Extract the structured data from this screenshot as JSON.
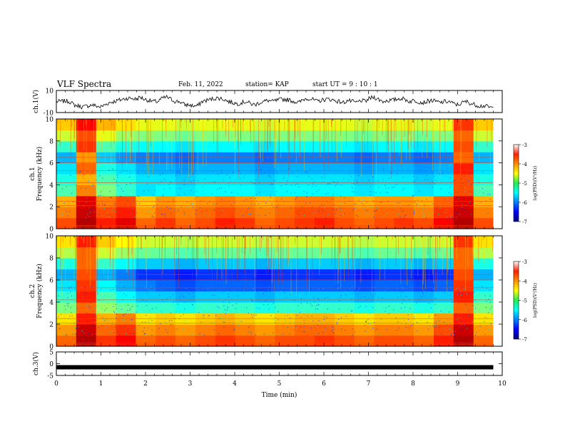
{
  "header": {
    "title": "VLF Spectra",
    "date": "Feb. 11, 2022",
    "station": "station= KAP",
    "start_time": "start  UT =   9 : 10 : 1"
  },
  "chart_data": [
    {
      "type": "line",
      "ylabel": "ch.1(V)",
      "ylim": [
        -10,
        10
      ],
      "yticklabels": [
        "10",
        "-10"
      ],
      "xlim": [
        0,
        10
      ],
      "series": [
        {
          "values": [
            0,
            0,
            0.5,
            0,
            -3,
            -4,
            -5,
            -4,
            -3,
            -4,
            -5,
            -3,
            -1,
            0,
            1,
            2,
            3,
            3,
            2,
            4,
            2,
            1,
            0,
            0,
            3,
            4,
            2,
            0,
            0,
            -3,
            -3,
            -4,
            -4,
            0,
            1,
            2,
            3,
            3,
            2,
            0,
            -1,
            -2,
            -1,
            0,
            -2,
            -3,
            -1,
            0,
            1,
            0,
            1,
            2,
            2,
            1,
            0,
            -1,
            2,
            3,
            2,
            0,
            1,
            2,
            2,
            1,
            0,
            -1,
            1,
            0,
            -1,
            1,
            0,
            3,
            4,
            2,
            0,
            1,
            1,
            2,
            3,
            2,
            0,
            1,
            0,
            -1,
            0,
            1,
            0,
            -1,
            0,
            0,
            -2,
            -3,
            -1,
            0,
            -2,
            -3,
            -4,
            -4,
            -5,
            -6
          ]
        }
      ]
    },
    {
      "type": "heatmap",
      "ylabel": "ch.1\nFrequency  (kHz)",
      "ylim": [
        0,
        10
      ],
      "yticklabels": [
        "0",
        "2",
        "4",
        "6",
        "8",
        "10"
      ],
      "xlim": [
        0,
        10
      ],
      "colorbar": {
        "range": [
          -7,
          -3
        ],
        "ticklabels": [
          "-3",
          "-4",
          "-5",
          "-6",
          "-7"
        ],
        "label": "log(PSD)(V²/Hz)"
      },
      "rows": [
        [
          -3.8,
          -3.2,
          -3.6,
          -3.4,
          -3.9,
          -3.7,
          -3.9,
          -3.8,
          -3.6,
          -3.7,
          -3.9,
          -3.8,
          -3.7,
          -3.6,
          -3.8,
          -3.9,
          -3.8,
          -3.7,
          -3.8,
          -3.5,
          -3.2,
          -3.8
        ],
        [
          -4.0,
          -3.3,
          -3.8,
          -3.6,
          -4.1,
          -3.9,
          -4.0,
          -3.9,
          -3.8,
          -3.9,
          -4.0,
          -3.9,
          -3.8,
          -3.8,
          -3.9,
          -4.0,
          -3.9,
          -3.9,
          -4.0,
          -3.7,
          -3.3,
          -4.0
        ],
        [
          -4.2,
          -3.4,
          -4.0,
          -3.8,
          -4.3,
          -4.1,
          -4.2,
          -4.1,
          -4.0,
          -4.1,
          -4.2,
          -4.1,
          -4.0,
          -4.0,
          -4.1,
          -4.2,
          -4.1,
          -4.1,
          -4.2,
          -3.9,
          -3.4,
          -4.2
        ],
        [
          -5.2,
          -4.0,
          -5.0,
          -5.3,
          -5.6,
          -5.5,
          -5.6,
          -5.5,
          -5.5,
          -5.5,
          -5.6,
          -5.5,
          -5.5,
          -5.5,
          -5.5,
          -5.6,
          -5.5,
          -5.5,
          -5.6,
          -5.5,
          -3.8,
          -5.2
        ],
        [
          -5.4,
          -4.2,
          -5.2,
          -5.4,
          -5.6,
          -5.6,
          -5.7,
          -5.6,
          -5.6,
          -5.6,
          -5.7,
          -5.6,
          -5.6,
          -5.6,
          -5.6,
          -5.7,
          -5.6,
          -5.6,
          -5.7,
          -5.6,
          -3.8,
          -5.4
        ],
        [
          -5.6,
          -3.9,
          -5.4,
          -5.6,
          -5.8,
          -5.8,
          -5.9,
          -5.8,
          -5.8,
          -5.8,
          -5.9,
          -5.8,
          -5.8,
          -5.8,
          -5.8,
          -5.9,
          -5.8,
          -5.8,
          -5.9,
          -5.8,
          -3.6,
          -5.6
        ],
        [
          -5.8,
          -4.1,
          -5.7,
          -5.9,
          -6.0,
          -6.0,
          -6.1,
          -6.0,
          -6.0,
          -6.0,
          -6.1,
          -6.0,
          -6.0,
          -6.0,
          -6.0,
          -6.1,
          -6.0,
          -6.0,
          -6.1,
          -6.0,
          -3.9,
          -5.8
        ],
        [
          -5.3,
          -3.7,
          -5.2,
          -5.4,
          -5.5,
          -5.5,
          -5.6,
          -5.5,
          -5.5,
          -5.5,
          -5.6,
          -5.5,
          -5.5,
          -5.5,
          -5.5,
          -5.6,
          -5.5,
          -5.5,
          -5.6,
          -5.5,
          -3.8,
          -5.3
        ],
        [
          -4.7,
          -3.8,
          -4.6,
          -4.9,
          -5.0,
          -5.0,
          -5.1,
          -5.0,
          -5.0,
          -5.0,
          -5.1,
          -5.0,
          -5.0,
          -5.0,
          -5.0,
          -5.1,
          -5.0,
          -5.0,
          -5.1,
          -5.0,
          -3.9,
          -4.7
        ],
        [
          -4.3,
          -3.5,
          -4.2,
          -4.4,
          -4.6,
          -4.6,
          -4.7,
          -4.6,
          -4.6,
          -4.6,
          -4.7,
          -4.6,
          -4.6,
          -4.6,
          -4.6,
          -4.7,
          -4.6,
          -4.6,
          -4.7,
          -4.6,
          -3.7,
          -4.3
        ]
      ]
    },
    {
      "type": "heatmap",
      "ylabel": "ch.2\nFrequency  (kHz)",
      "ylim": [
        0,
        10
      ],
      "yticklabels": [
        "0",
        "2",
        "4",
        "6",
        "8",
        "10"
      ],
      "xlim": [
        0,
        10
      ],
      "colorbar": {
        "range": [
          -7,
          -3
        ],
        "ticklabels": [
          "-3",
          "-4",
          "-5",
          "-6",
          "-7"
        ],
        "label": "log(PSD)(V²/Hz)"
      },
      "rows": [
        [
          -3.9,
          -3.2,
          -3.7,
          -3.5,
          -3.9,
          -3.8,
          -3.9,
          -3.8,
          -3.7,
          -3.8,
          -3.9,
          -3.8,
          -3.8,
          -3.7,
          -3.8,
          -3.9,
          -3.8,
          -3.8,
          -3.9,
          -3.6,
          -3.2,
          -3.9
        ],
        [
          -4.1,
          -3.3,
          -3.9,
          -3.7,
          -4.1,
          -4.0,
          -4.1,
          -4.0,
          -3.9,
          -4.0,
          -4.1,
          -4.0,
          -3.9,
          -3.9,
          -4.0,
          -4.1,
          -4.0,
          -4.0,
          -4.1,
          -3.8,
          -3.3,
          -4.1
        ],
        [
          -4.4,
          -3.6,
          -4.2,
          -4.0,
          -4.4,
          -4.3,
          -4.4,
          -4.3,
          -4.2,
          -4.3,
          -4.4,
          -4.3,
          -4.2,
          -4.2,
          -4.3,
          -4.4,
          -4.3,
          -4.3,
          -4.4,
          -4.1,
          -3.6,
          -4.4
        ],
        [
          -5.0,
          -3.9,
          -4.9,
          -5.1,
          -5.3,
          -5.3,
          -5.4,
          -5.3,
          -5.3,
          -5.3,
          -5.4,
          -5.3,
          -5.3,
          -5.3,
          -5.3,
          -5.4,
          -5.3,
          -5.3,
          -5.4,
          -5.3,
          -3.9,
          -5.0
        ],
        [
          -5.3,
          -3.6,
          -5.2,
          -5.5,
          -5.7,
          -5.7,
          -5.8,
          -5.7,
          -5.7,
          -5.7,
          -5.8,
          -5.7,
          -5.7,
          -5.7,
          -5.7,
          -5.8,
          -5.7,
          -5.7,
          -5.8,
          -5.7,
          -3.6,
          -5.3
        ],
        [
          -5.6,
          -3.7,
          -5.5,
          -5.8,
          -6.0,
          -6.1,
          -6.2,
          -6.1,
          -6.1,
          -6.1,
          -6.2,
          -6.1,
          -6.1,
          -6.1,
          -6.1,
          -6.2,
          -6.1,
          -6.1,
          -6.2,
          -6.1,
          -3.7,
          -5.6
        ],
        [
          -5.8,
          -3.8,
          -5.8,
          -6.0,
          -6.3,
          -6.3,
          -6.4,
          -6.3,
          -6.3,
          -6.3,
          -6.4,
          -6.3,
          -6.3,
          -6.3,
          -6.3,
          -6.4,
          -6.3,
          -6.3,
          -6.4,
          -6.3,
          -3.8,
          -5.8
        ],
        [
          -5.4,
          -3.9,
          -5.3,
          -5.5,
          -5.7,
          -5.7,
          -5.8,
          -5.7,
          -5.7,
          -5.7,
          -5.8,
          -5.7,
          -5.7,
          -5.7,
          -5.7,
          -5.8,
          -5.7,
          -5.7,
          -5.8,
          -5.7,
          -3.9,
          -5.4
        ],
        [
          -4.8,
          -3.9,
          -4.7,
          -4.9,
          -5.1,
          -5.1,
          -5.2,
          -5.1,
          -5.1,
          -5.1,
          -5.2,
          -5.1,
          -5.1,
          -5.1,
          -5.1,
          -5.2,
          -5.1,
          -5.1,
          -5.2,
          -5.1,
          -3.9,
          -4.8
        ],
        [
          -4.4,
          -3.6,
          -4.3,
          -4.5,
          -4.7,
          -4.7,
          -4.8,
          -4.7,
          -4.7,
          -4.7,
          -4.8,
          -4.7,
          -4.7,
          -4.7,
          -4.7,
          -4.8,
          -4.7,
          -4.7,
          -4.8,
          -4.7,
          -3.7,
          -4.4
        ]
      ]
    },
    {
      "type": "line",
      "ylabel": "ch.3(V)",
      "ylim": [
        -5,
        5
      ],
      "yticklabels": [
        "5",
        "0",
        "-5"
      ],
      "xlim": [
        0,
        10
      ],
      "xlabel": "Time  (min)",
      "xticklabels": [
        "0",
        "1",
        "2",
        "3",
        "4",
        "5",
        "6",
        "7",
        "8",
        "9",
        "10"
      ],
      "series": [
        {
          "x": [
            0,
            9.8
          ],
          "values": [
            -1.5,
            -1.5
          ]
        }
      ]
    }
  ]
}
